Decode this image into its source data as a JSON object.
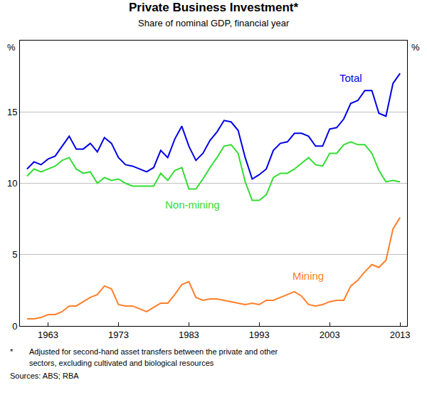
{
  "chart_data": {
    "type": "line",
    "title": "Private Business Investment*",
    "subtitle": "Share of nominal GDP, financial year",
    "x": [
      1960,
      1961,
      1962,
      1963,
      1964,
      1965,
      1966,
      1967,
      1968,
      1969,
      1970,
      1971,
      1972,
      1973,
      1974,
      1975,
      1976,
      1977,
      1978,
      1979,
      1980,
      1981,
      1982,
      1983,
      1984,
      1985,
      1986,
      1987,
      1988,
      1989,
      1990,
      1991,
      1992,
      1993,
      1994,
      1995,
      1996,
      1997,
      1998,
      1999,
      2000,
      2001,
      2002,
      2003,
      2004,
      2005,
      2006,
      2007,
      2008,
      2009,
      2010,
      2011,
      2012,
      2013
    ],
    "xlim": [
      1959,
      2014
    ],
    "xticks": [
      1963,
      1973,
      1983,
      1993,
      2003,
      2013
    ],
    "ylim": [
      0,
      20
    ],
    "yticks": [
      0,
      5,
      10,
      15
    ],
    "ylabel": "%",
    "grid": true,
    "series": [
      {
        "name": "Total",
        "color": "#0000e6",
        "values": [
          11.0,
          11.5,
          11.3,
          11.7,
          11.9,
          12.6,
          13.3,
          12.4,
          12.4,
          12.8,
          12.2,
          13.2,
          12.8,
          11.8,
          11.3,
          11.2,
          11.0,
          10.8,
          11.1,
          12.3,
          11.8,
          13.1,
          14.0,
          12.6,
          11.6,
          12.1,
          13.0,
          13.6,
          14.4,
          14.3,
          13.7,
          11.8,
          10.3,
          10.6,
          11.0,
          12.3,
          12.8,
          12.9,
          13.5,
          13.5,
          13.3,
          12.6,
          12.6,
          13.8,
          13.9,
          14.5,
          15.6,
          15.8,
          16.5,
          16.5,
          14.9,
          14.7,
          17.0,
          17.7
        ]
      },
      {
        "name": "Non-mining",
        "color": "#33dd33",
        "values": [
          10.5,
          11.0,
          10.8,
          11.0,
          11.2,
          11.6,
          11.8,
          11.0,
          10.7,
          10.8,
          10.0,
          10.4,
          10.2,
          10.3,
          10.0,
          9.8,
          9.8,
          9.8,
          9.8,
          10.7,
          10.2,
          10.9,
          11.1,
          9.6,
          9.6,
          10.3,
          11.1,
          11.8,
          12.6,
          12.7,
          12.1,
          10.1,
          8.8,
          8.8,
          9.2,
          10.4,
          10.7,
          10.7,
          11.0,
          11.4,
          11.8,
          11.3,
          11.2,
          12.1,
          12.1,
          12.7,
          12.9,
          12.7,
          12.7,
          12.1,
          10.9,
          10.1,
          10.2,
          10.1
        ]
      },
      {
        "name": "Mining",
        "color": "#ff7f2a",
        "values": [
          0.5,
          0.5,
          0.6,
          0.8,
          0.8,
          1.0,
          1.4,
          1.4,
          1.7,
          2.0,
          2.2,
          2.8,
          2.6,
          1.5,
          1.4,
          1.4,
          1.2,
          1.0,
          1.3,
          1.6,
          1.6,
          2.2,
          2.9,
          3.1,
          2.0,
          1.8,
          1.9,
          1.9,
          1.8,
          1.7,
          1.6,
          1.5,
          1.6,
          1.5,
          1.8,
          1.8,
          2.0,
          2.2,
          2.4,
          2.1,
          1.5,
          1.4,
          1.5,
          1.7,
          1.8,
          1.8,
          2.8,
          3.2,
          3.8,
          4.3,
          4.1,
          4.6,
          6.8,
          7.6
        ]
      }
    ],
    "footnote": {
      "marker": "*",
      "lines": [
        "Adjusted for second-hand asset transfers between the private and other",
        "sectors, excluding cultivated and biological resources"
      ]
    },
    "source": "Sources: ABS; RBA"
  }
}
